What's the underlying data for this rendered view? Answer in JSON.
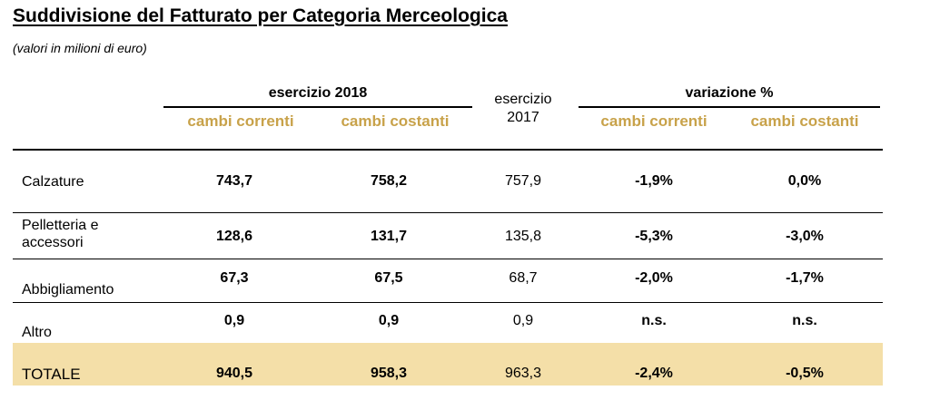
{
  "title": "Suddivisione del Fatturato per Categoria Merceologica",
  "subtitle": "(valori in milioni di euro)",
  "colors": {
    "highlight": "#c8a24a",
    "total_band": "#f4dfa8",
    "text": "#000000"
  },
  "header": {
    "group_2018": "esercizio 2018",
    "col_2017_line1": "esercizio",
    "col_2017_line2": "2017",
    "group_var": "variazione %",
    "sub_cambi_correnti": "cambi correnti",
    "sub_cambi_costanti": "cambi costanti"
  },
  "rows": [
    {
      "label_lines": [
        "Calzature"
      ],
      "c2018_correnti": "743,7",
      "c2018_costanti": "758,2",
      "c2017": "757,9",
      "var_correnti": "-1,9%",
      "var_costanti": "0,0%"
    },
    {
      "label_lines": [
        "Pelletteria e",
        "accessori"
      ],
      "c2018_correnti": "128,6",
      "c2018_costanti": "131,7",
      "c2017": "135,8",
      "var_correnti": "-5,3%",
      "var_costanti": "-3,0%"
    },
    {
      "label_lines": [
        "Abbigliamento"
      ],
      "c2018_correnti": "67,3",
      "c2018_costanti": "67,5",
      "c2017": "68,7",
      "var_correnti": "-2,0%",
      "var_costanti": "-1,7%"
    },
    {
      "label_lines": [
        "Altro"
      ],
      "c2018_correnti": "0,9",
      "c2018_costanti": "0,9",
      "c2017": "0,9",
      "var_correnti": "n.s.",
      "var_costanti": "n.s."
    },
    {
      "label_lines": [
        "TOTALE"
      ],
      "c2018_correnti": "940,5",
      "c2018_costanti": "958,3",
      "c2017": "963,3",
      "var_correnti": "-2,4%",
      "var_costanti": "-0,5%"
    }
  ]
}
